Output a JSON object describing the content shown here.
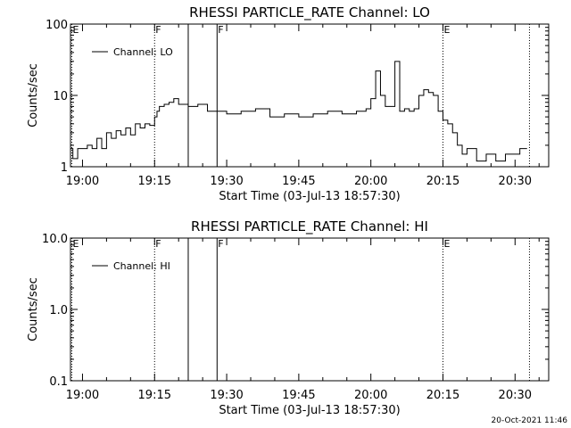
{
  "footer": {
    "timestamp": "20-Oct-2021 11:46"
  },
  "chart_data": [
    {
      "type": "line",
      "title": "RHESSI PARTICLE_RATE Channel: LO",
      "xlabel": "Start Time (03-Jul-13 18:57:30)",
      "ylabel": "Counts/sec",
      "yscale": "log",
      "ylim": [
        1,
        100
      ],
      "xlim": [
        "18:57:30",
        "20:37:00"
      ],
      "x_ticks": [
        "19:00",
        "19:15",
        "19:30",
        "19:45",
        "20:00",
        "20:15",
        "20:30"
      ],
      "y_ticks": [
        "1",
        "10",
        "100"
      ],
      "legend": {
        "entries": [
          "Channel: LO"
        ],
        "placement": "top-left"
      },
      "series": [
        {
          "name": "Channel: LO",
          "x": [
            "18:57:30",
            "18:58:00",
            "18:59:00",
            "19:00:00",
            "19:01:00",
            "19:02:00",
            "19:03:00",
            "19:04:00",
            "19:05:00",
            "19:06:00",
            "19:07:00",
            "19:08:00",
            "19:09:00",
            "19:10:00",
            "19:11:00",
            "19:12:00",
            "19:13:00",
            "19:14:00",
            "19:15:00",
            "19:15:30",
            "19:16:00",
            "19:17:00",
            "19:18:00",
            "19:19:00",
            "19:20:00",
            "19:22:00",
            "19:24:00",
            "19:26:00",
            "19:28:00",
            "19:30:00",
            "19:33:00",
            "19:36:00",
            "19:39:00",
            "19:42:00",
            "19:45:00",
            "19:48:00",
            "19:51:00",
            "19:54:00",
            "19:57:00",
            "19:59:00",
            "20:00:00",
            "20:01:00",
            "20:02:00",
            "20:03:00",
            "20:04:00",
            "20:05:00",
            "20:06:00",
            "20:07:00",
            "20:08:00",
            "20:09:00",
            "20:10:00",
            "20:11:00",
            "20:12:00",
            "20:13:00",
            "20:14:00",
            "20:15:00",
            "20:16:00",
            "20:17:00",
            "20:18:00",
            "20:19:00",
            "20:20:00",
            "20:22:00",
            "20:24:00",
            "20:26:00",
            "20:28:00",
            "20:30:00",
            "20:31:00",
            "20:32:30"
          ],
          "y": [
            1.8,
            1.3,
            1.8,
            1.8,
            2.0,
            1.8,
            2.5,
            1.8,
            3.0,
            2.5,
            3.2,
            2.8,
            3.5,
            2.8,
            4.0,
            3.5,
            4.0,
            3.8,
            5.0,
            6.0,
            7.0,
            7.5,
            8.0,
            9.0,
            7.5,
            7.0,
            7.5,
            6.0,
            6.0,
            5.5,
            6.0,
            6.5,
            5.0,
            5.5,
            5.0,
            5.5,
            6.0,
            5.5,
            6.0,
            6.5,
            9.0,
            22.0,
            10.0,
            7.0,
            7.0,
            30.0,
            6.0,
            6.5,
            6.0,
            6.5,
            10.0,
            12.0,
            11.0,
            10.0,
            6.0,
            4.5,
            4.0,
            3.0,
            2.0,
            1.5,
            1.8,
            1.2,
            1.5,
            1.2,
            1.5,
            1.5,
            1.8,
            1.8
          ]
        }
      ],
      "annotations": [
        {
          "label": "E",
          "time": "18:57:30",
          "style": "dotted"
        },
        {
          "label": "F",
          "time": "19:15:00",
          "style": "dotted"
        },
        {
          "label": "",
          "time": "19:22:00",
          "style": "solid"
        },
        {
          "label": "F",
          "time": "19:28:00",
          "style": "solid"
        },
        {
          "label": "E",
          "time": "20:15:00",
          "style": "dotted"
        },
        {
          "label": "",
          "time": "20:33:00",
          "style": "dotted"
        }
      ]
    },
    {
      "type": "line",
      "title": "RHESSI PARTICLE_RATE Channel: HI",
      "xlabel": "Start Time (03-Jul-13 18:57:30)",
      "ylabel": "Counts/sec",
      "yscale": "log",
      "ylim": [
        0.1,
        10
      ],
      "xlim": [
        "18:57:30",
        "20:37:00"
      ],
      "x_ticks": [
        "19:00",
        "19:15",
        "19:30",
        "19:45",
        "20:00",
        "20:15",
        "20:30"
      ],
      "y_ticks": [
        "0.1",
        "1.0",
        "10.0"
      ],
      "legend": {
        "entries": [
          "Channel: HI"
        ],
        "placement": "top-left"
      },
      "series": [
        {
          "name": "Channel: HI",
          "x": [],
          "y": []
        }
      ],
      "annotations": [
        {
          "label": "E",
          "time": "18:57:30",
          "style": "dotted"
        },
        {
          "label": "F",
          "time": "19:15:00",
          "style": "dotted"
        },
        {
          "label": "",
          "time": "19:22:00",
          "style": "solid"
        },
        {
          "label": "F",
          "time": "19:28:00",
          "style": "solid"
        },
        {
          "label": "E",
          "time": "20:15:00",
          "style": "dotted"
        },
        {
          "label": "",
          "time": "20:33:00",
          "style": "dotted"
        }
      ]
    }
  ]
}
